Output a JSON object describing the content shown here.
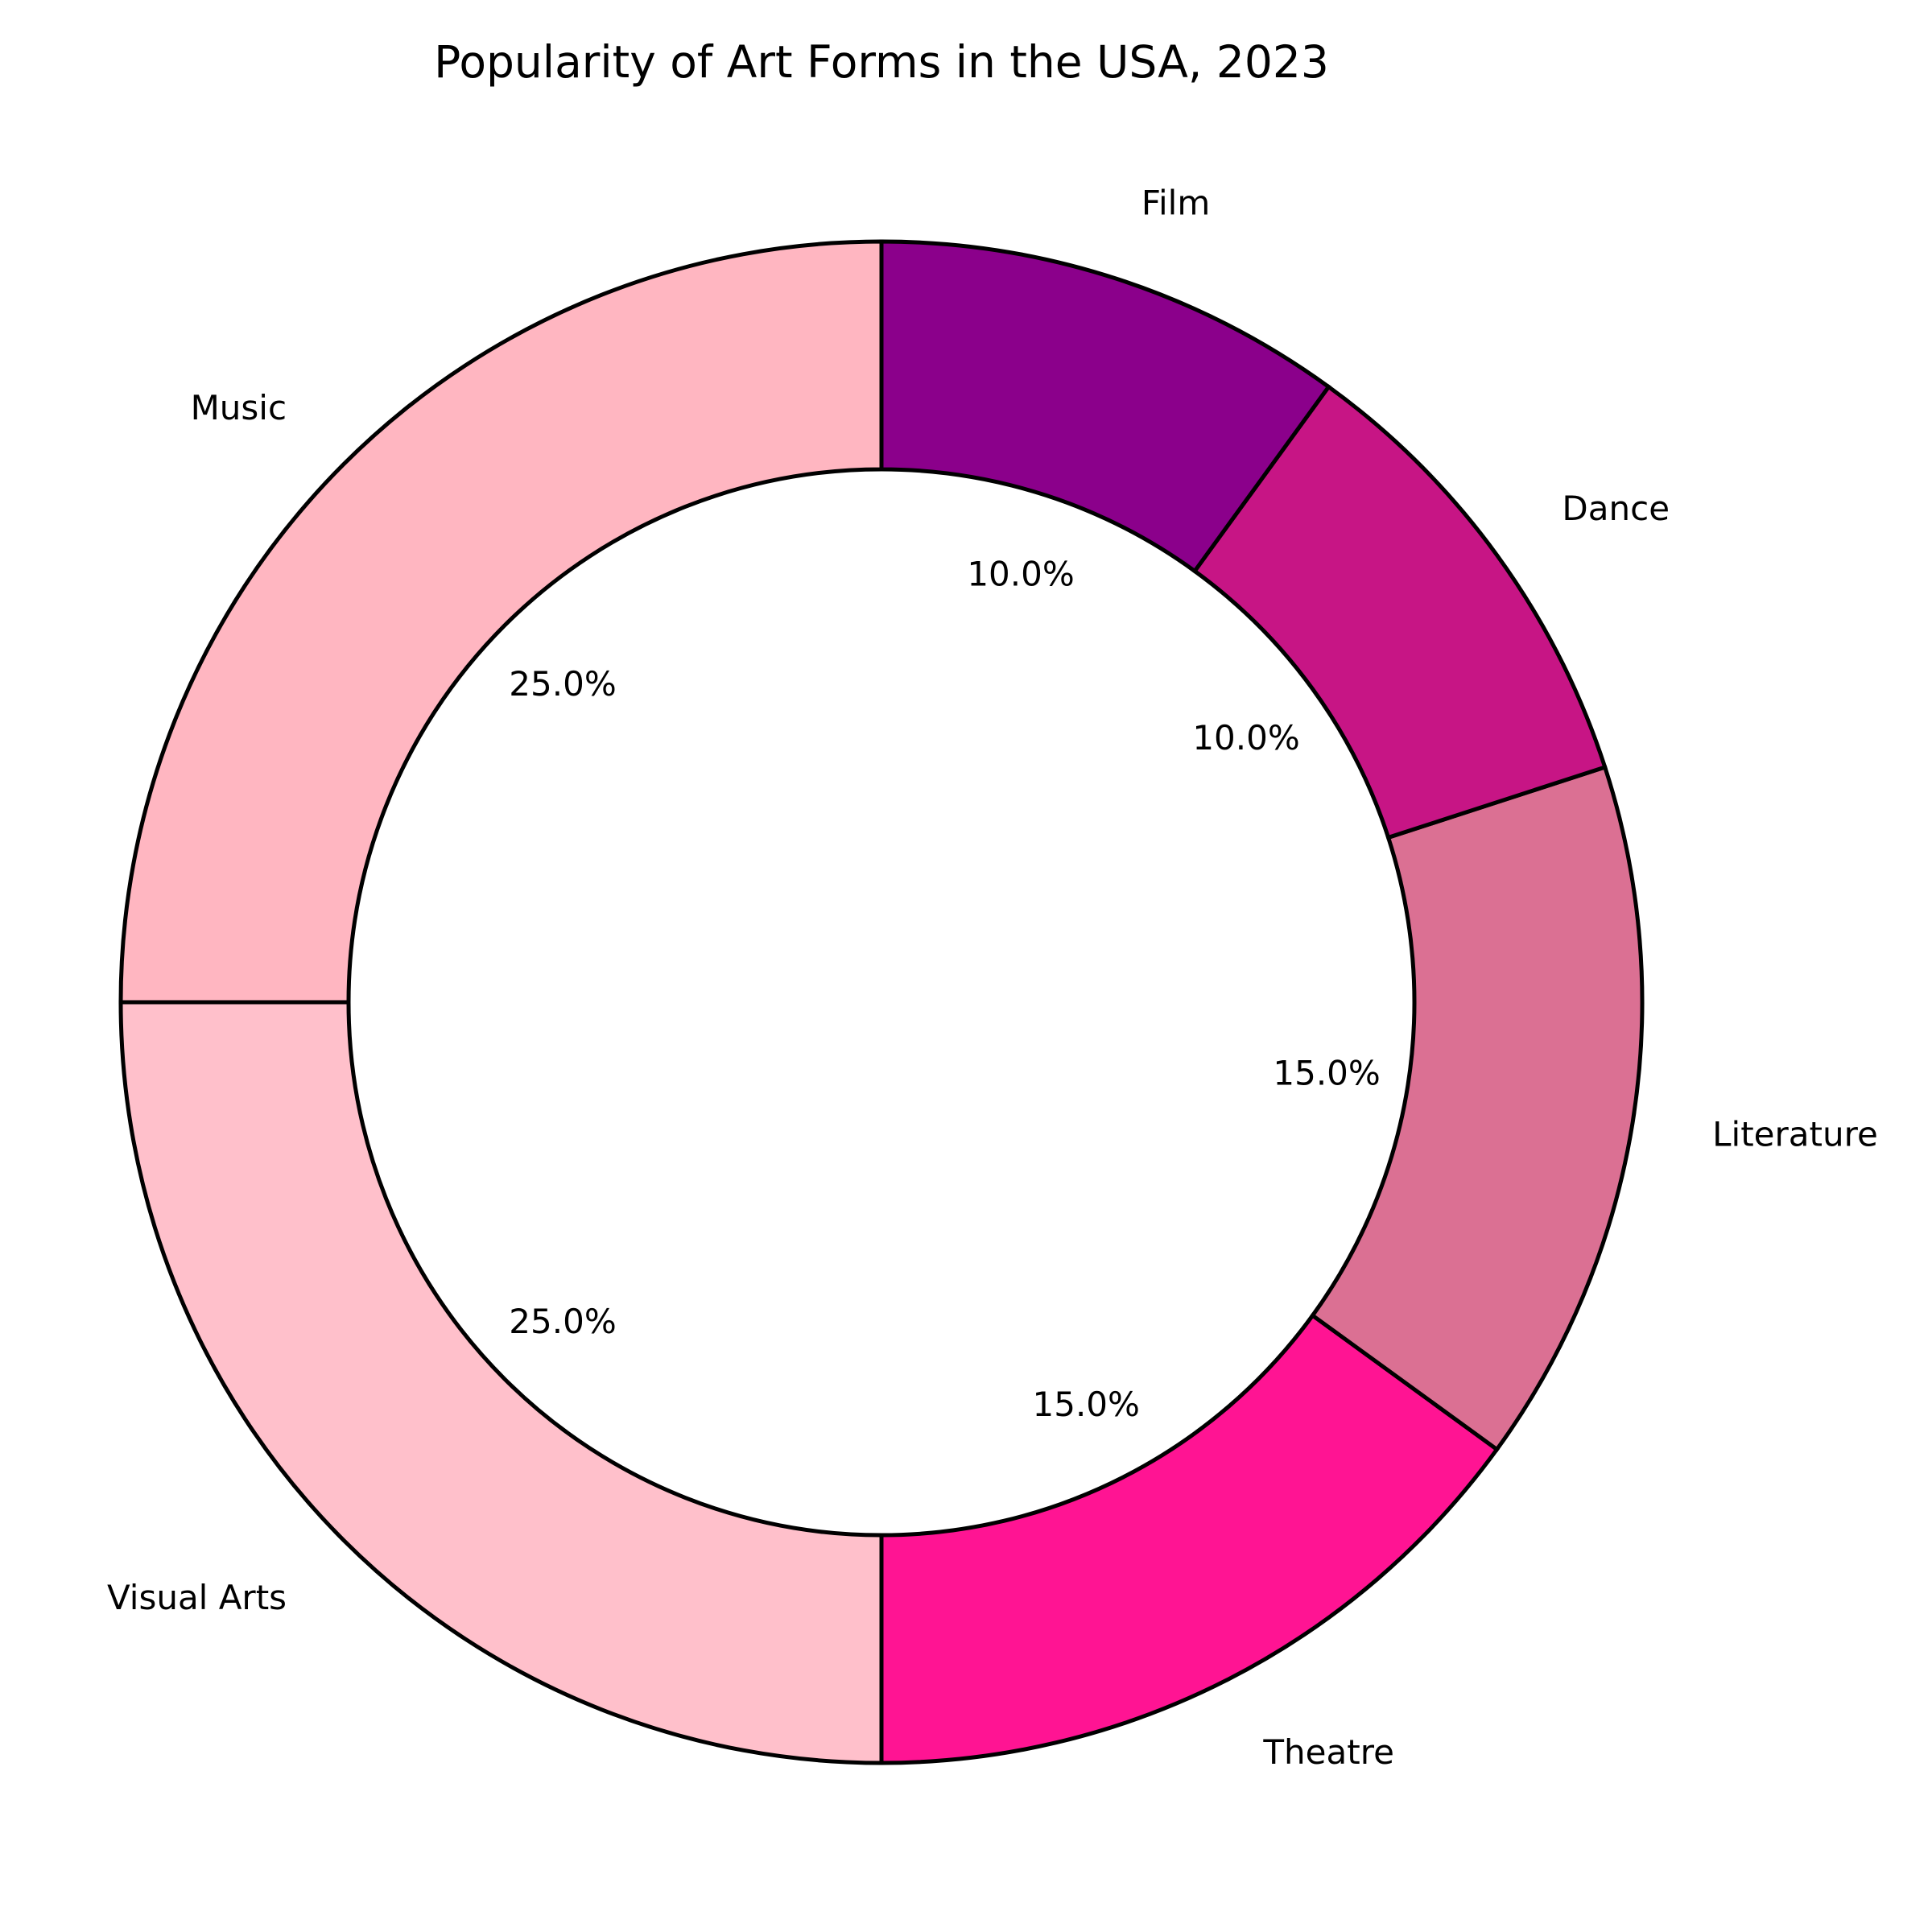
{
  "chart_data": {
    "type": "pie",
    "variant": "donut",
    "title": "Popularity of Art Forms in the USA, 2023",
    "categories": [
      "Music",
      "Visual Arts",
      "Theatre",
      "Literature",
      "Dance",
      "Film"
    ],
    "values": [
      25.0,
      25.0,
      15.0,
      15.0,
      10.0,
      10.0
    ],
    "value_labels": [
      "25.0%",
      "25.0%",
      "15.0%",
      "15.0%",
      "10.0%",
      "10.0%"
    ],
    "colors": [
      "#FFB6C1",
      "#FFC0CB",
      "#FF1493",
      "#DB7093",
      "#C71585",
      "#8B008B"
    ],
    "start_angle_deg": 90,
    "direction": "counterclockwise",
    "legend": "none",
    "edge_color": "#000000"
  }
}
